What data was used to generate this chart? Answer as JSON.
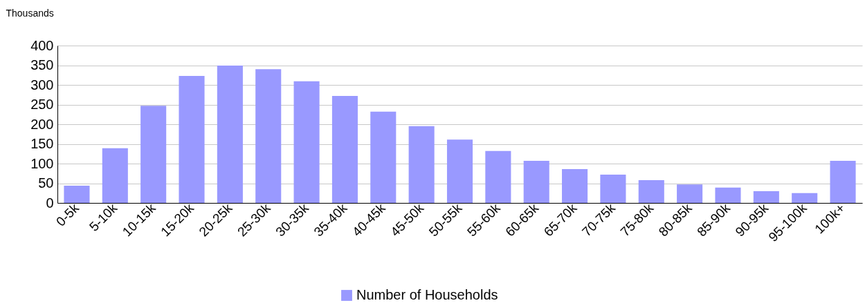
{
  "chart_data": {
    "type": "bar",
    "ylabel": "Thousands",
    "categories": [
      "0-5k",
      "5-10k",
      "10-15k",
      "15-20k",
      "20-25k",
      "25-30k",
      "30-35k",
      "35-40k",
      "40-45k",
      "45-50k",
      "50-55k",
      "55-60k",
      "60-65k",
      "65-70k",
      "70-75k",
      "75-80k",
      "80-85k",
      "85-90k",
      "90-95k",
      "95-100k",
      "100k+"
    ],
    "series": [
      {
        "name": "Number of Households",
        "color": "#9999ff",
        "values": [
          44,
          139,
          247,
          323,
          349,
          340,
          309,
          272,
          232,
          195,
          161,
          132,
          107,
          86,
          72,
          58,
          47,
          39,
          30,
          25,
          107
        ]
      }
    ],
    "ylim": [
      0,
      400
    ],
    "yticks": [
      0,
      50,
      100,
      150,
      200,
      250,
      300,
      350,
      400
    ],
    "grid": "y",
    "legend": "bottom"
  }
}
